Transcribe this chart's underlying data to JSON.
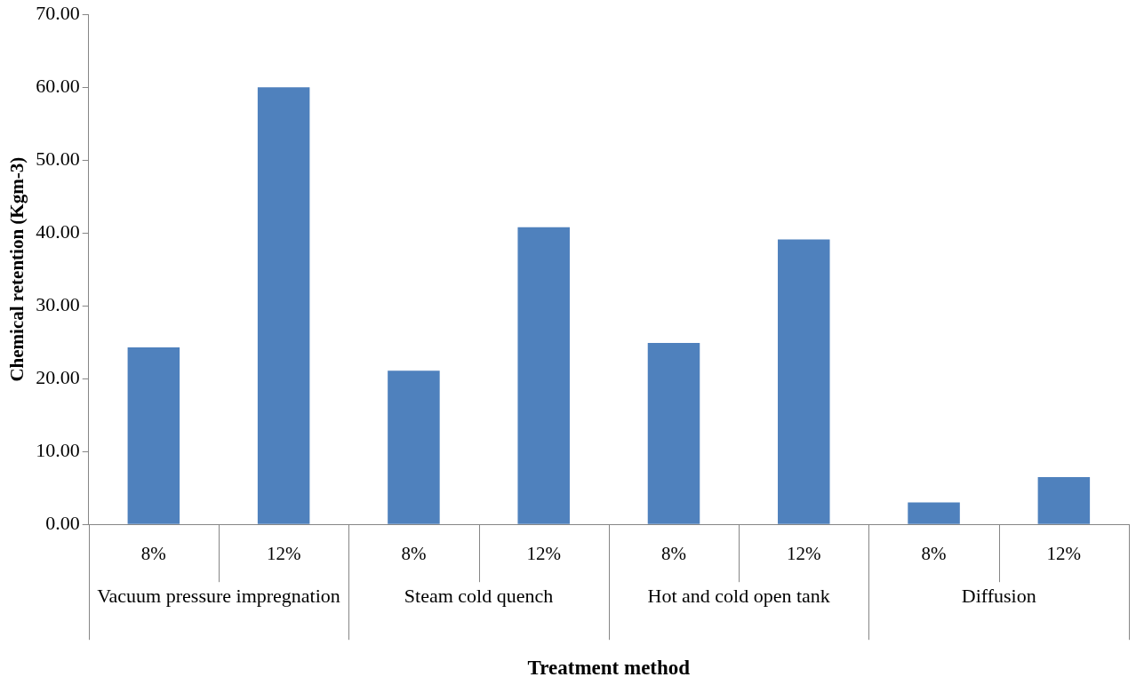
{
  "chart_data": {
    "type": "bar",
    "xlabel": "Treatment method",
    "ylabel": "Chemical retention (Kgm-3)",
    "categories": [
      "8%",
      "12%",
      "8%",
      "12%",
      "8%",
      "12%",
      "8%",
      "12%"
    ],
    "values": [
      24.3,
      60.0,
      21.1,
      40.8,
      24.9,
      39.1,
      3.0,
      6.5
    ],
    "color": "#4f81bd",
    "ylim": [
      0,
      70
    ],
    "yticks": [
      {
        "value": 0,
        "label": "0.00"
      },
      {
        "value": 10,
        "label": "10.00"
      },
      {
        "value": 20,
        "label": "20.00"
      },
      {
        "value": 30,
        "label": "30.00"
      },
      {
        "value": 40,
        "label": "40.00"
      },
      {
        "value": 50,
        "label": "50.00"
      },
      {
        "value": 60,
        "label": "60.00"
      },
      {
        "value": 70,
        "label": "70.00"
      }
    ],
    "annotations": [
      "Vacuum pressure impregnation",
      "Steam cold quench",
      "Hot and cold open tank",
      "Diffusion"
    ],
    "legend": false
  }
}
